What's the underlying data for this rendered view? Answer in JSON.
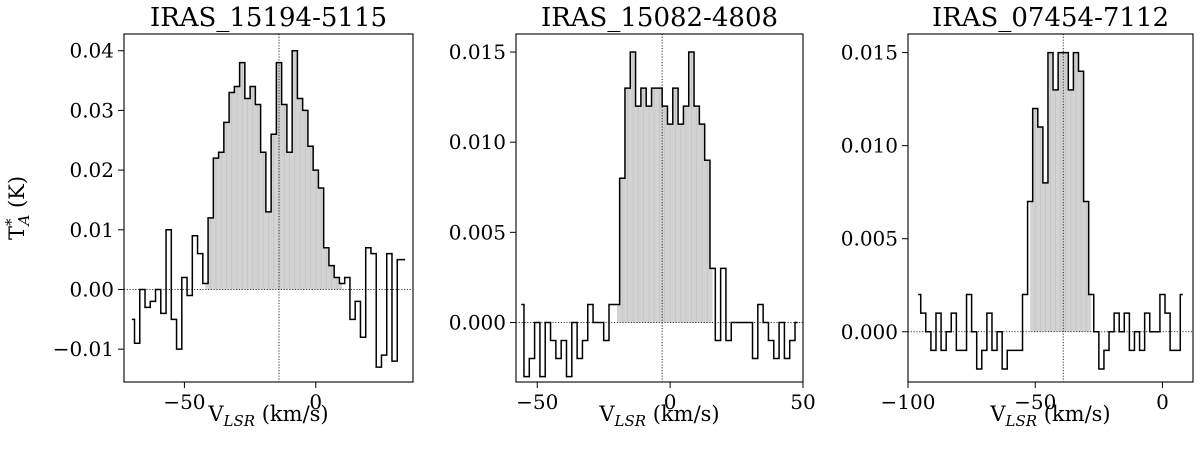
{
  "chart_data": [
    {
      "type": "line",
      "title": "IRAS_15194-5115",
      "xlabel_main": "V",
      "xlabel_sub": "LSR",
      "xlabel_tail": " (km/s)",
      "ylabel_main": "T",
      "ylabel_sup": "*",
      "ylabel_sub": "A",
      "ylabel_tail": " (K)",
      "xlim": [
        -73,
        37
      ],
      "ylim": [
        -0.0155,
        0.0428
      ],
      "xticks": [
        -50,
        0
      ],
      "xtick_labels": [
        "−50",
        "0"
      ],
      "yticks": [
        -0.01,
        0,
        0.01,
        0.02,
        0.03,
        0.04
      ],
      "ytick_labels": [
        "−0.01",
        "0.00",
        "0.01",
        "0.02",
        "0.03",
        "0.04"
      ],
      "vline": -14,
      "grid": false,
      "step_style": "steps-mid",
      "fill_range": [
        -42,
        10
      ],
      "x": [
        -70,
        -68,
        -66,
        -64,
        -62,
        -60,
        -58,
        -56,
        -54,
        -52,
        -50,
        -48,
        -46,
        -44,
        -42,
        -40,
        -38,
        -36,
        -34,
        -32,
        -30,
        -28,
        -26,
        -24,
        -22,
        -20,
        -18,
        -16,
        -14,
        -12,
        -10,
        -8,
        -6,
        -4,
        -2,
        0,
        2,
        4,
        6,
        8,
        10,
        12,
        14,
        16,
        18,
        20,
        22,
        24,
        26,
        28,
        30,
        32,
        34
      ],
      "y": [
        -0.005,
        -0.009,
        0,
        -0.003,
        -0.002,
        0,
        -0.004,
        0.01,
        -0.005,
        -0.01,
        0.002,
        -0.001,
        0.009,
        0.006,
        0.001,
        0.012,
        0.022,
        0.023,
        0.028,
        0.033,
        0.034,
        0.038,
        0.032,
        0.034,
        0.031,
        0.023,
        0.013,
        0.026,
        0.038,
        0.031,
        0.023,
        0.04,
        0.032,
        0.03,
        0.024,
        0.02,
        0.017,
        0.007,
        0.004,
        0.002,
        0.001,
        0.002,
        -0.005,
        -0.002,
        -0.008,
        0.007,
        0.006,
        -0.013,
        -0.011,
        0.006,
        -0.012,
        0.005,
        0.005
      ]
    },
    {
      "type": "line",
      "title": "IRAS_15082-4808",
      "xlabel_main": "V",
      "xlabel_sub": "LSR",
      "xlabel_tail": " (km/s)",
      "xlim": [
        -58,
        50
      ],
      "ylim": [
        -0.0033,
        0.016
      ],
      "xticks": [
        -50,
        0,
        50
      ],
      "xtick_labels": [
        "−50",
        "0",
        "50"
      ],
      "yticks": [
        0,
        0.005,
        0.01,
        0.015
      ],
      "ytick_labels": [
        "0.000",
        "0.005",
        "0.010",
        "0.015"
      ],
      "vline": -3,
      "grid": false,
      "step_style": "steps-mid",
      "fill_range": [
        -20,
        16
      ],
      "x": [
        -56,
        -54,
        -52,
        -50,
        -48,
        -46,
        -44,
        -42,
        -40,
        -38,
        -36,
        -34,
        -32,
        -30,
        -28,
        -26,
        -24,
        -22,
        -20,
        -18,
        -16,
        -14,
        -12,
        -10,
        -8,
        -6,
        -4,
        -2,
        0,
        2,
        4,
        6,
        8,
        10,
        12,
        14,
        16,
        18,
        20,
        22,
        24,
        26,
        28,
        30,
        32,
        34,
        36,
        38,
        40,
        42,
        44,
        46,
        48
      ],
      "y": [
        0.001,
        -0.003,
        -0.002,
        0,
        -0.003,
        0,
        -0.001,
        -0.002,
        -0.001,
        -0.003,
        0,
        -0.002,
        -0.001,
        0.001,
        0,
        0,
        -0.001,
        0.001,
        0.001,
        0.008,
        0.013,
        0.015,
        0.012,
        0.013,
        0.012,
        0.013,
        0.013,
        0.012,
        0.011,
        0.013,
        0.011,
        0.012,
        0.015,
        0.012,
        0.011,
        0.009,
        0.003,
        -0.001,
        0.003,
        -0.001,
        0,
        0,
        0,
        0,
        -0.002,
        0.001,
        0,
        -0.001,
        -0.002,
        0,
        -0.002,
        -0.001,
        0
      ]
    },
    {
      "type": "line",
      "title": "IRAS_07454-7112",
      "xlabel_main": "V",
      "xlabel_sub": "LSR",
      "xlabel_tail": " (km/s)",
      "xlim": [
        -100,
        12
      ],
      "ylim": [
        -0.0027,
        0.016
      ],
      "xticks": [
        -100,
        -50,
        0
      ],
      "xtick_labels": [
        "−100",
        "−50",
        "0"
      ],
      "yticks": [
        0,
        0.005,
        0.01,
        0.015
      ],
      "ytick_labels": [
        "0.000",
        "0.005",
        "0.010",
        "0.015"
      ],
      "vline": -39,
      "grid": false,
      "step_style": "steps-mid",
      "fill_range": [
        -52,
        -28
      ],
      "x": [
        -96,
        -94,
        -92,
        -90,
        -88,
        -86,
        -84,
        -82,
        -80,
        -78,
        -76,
        -74,
        -72,
        -70,
        -68,
        -66,
        -64,
        -62,
        -60,
        -58,
        -56,
        -54,
        -52,
        -50,
        -48,
        -46,
        -44,
        -42,
        -40,
        -38,
        -36,
        -34,
        -32,
        -30,
        -28,
        -26,
        -24,
        -22,
        -20,
        -18,
        -16,
        -14,
        -12,
        -10,
        -8,
        -6,
        -4,
        -2,
        0,
        2,
        4,
        6,
        8
      ],
      "y": [
        0.002,
        0.001,
        0,
        -0.001,
        0.001,
        -0.001,
        0,
        0.001,
        -0.001,
        -0.001,
        0.002,
        0,
        -0.002,
        -0.001,
        0.001,
        -0.001,
        0,
        -0.002,
        -0.001,
        -0.001,
        -0.001,
        0.002,
        0.007,
        0.012,
        0.011,
        0.008,
        0.015,
        0.013,
        0.015,
        0.015,
        0.013,
        0.015,
        0.014,
        0.007,
        0.002,
        0,
        -0.002,
        -0.001,
        0,
        0.001,
        0,
        0.001,
        -0.001,
        0,
        -0.001,
        0.001,
        0,
        0,
        0.002,
        0.001,
        -0.001,
        -0.001,
        0.002
      ]
    }
  ]
}
